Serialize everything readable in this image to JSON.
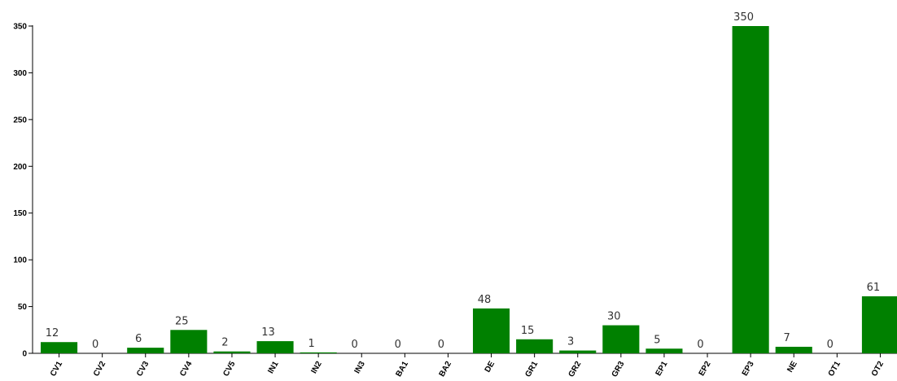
{
  "chart_data": {
    "type": "bar",
    "categories": [
      "CV1",
      "CV2",
      "CV3",
      "CV4",
      "CV5",
      "IN1",
      "IN2",
      "IN3",
      "BA1",
      "BA2",
      "DE",
      "GR1",
      "GR2",
      "GR3",
      "EP1",
      "EP2",
      "EP3",
      "NE",
      "OT1",
      "OT2"
    ],
    "values": [
      12,
      0,
      6,
      25,
      2,
      13,
      1,
      0,
      0,
      0,
      48,
      15,
      3,
      30,
      5,
      0,
      350,
      7,
      0,
      61
    ],
    "yticks": [
      0,
      50,
      100,
      150,
      200,
      250,
      300,
      350
    ],
    "ylim": [
      0,
      350
    ],
    "bar_color": "#008000",
    "title": "",
    "xlabel": "",
    "ylabel": "",
    "grid": false
  }
}
